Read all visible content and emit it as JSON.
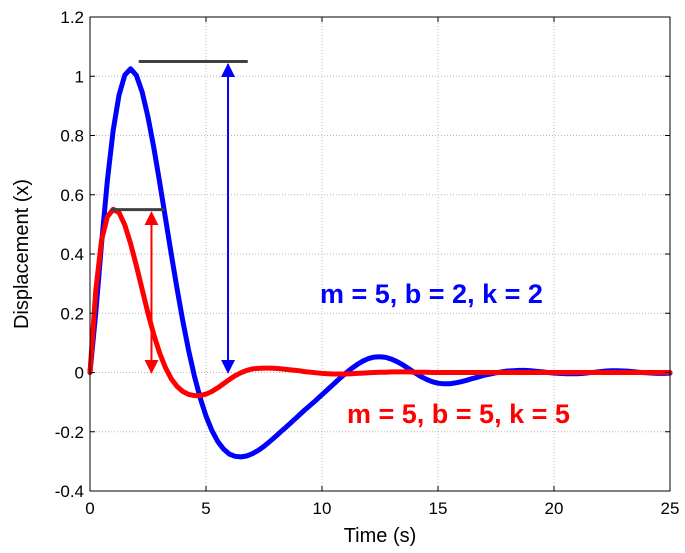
{
  "chart_data": {
    "type": "line",
    "xlabel": "Time (s)",
    "ylabel": "Displacement (x)",
    "xlim": [
      0,
      25
    ],
    "ylim": [
      -0.4,
      1.2
    ],
    "xticks": [
      0,
      5,
      10,
      15,
      20,
      25
    ],
    "yticks": [
      -0.4,
      -0.2,
      0,
      0.2,
      0.4,
      0.6,
      0.8,
      1,
      1.2
    ],
    "ytick_labels": [
      "-0.4",
      "-0.2",
      "0",
      "0.2",
      "0.4",
      "0.6",
      "0.8",
      "1",
      "1.2"
    ],
    "grid": true,
    "series": [
      {
        "name": "m = 5, b = 2, k = 2",
        "color": "#0000ff",
        "x": [
          0,
          0.25,
          0.5,
          0.75,
          1,
          1.25,
          1.5,
          1.75,
          2,
          2.25,
          2.5,
          2.75,
          3,
          3.25,
          3.5,
          3.75,
          4,
          4.25,
          4.5,
          4.75,
          5,
          5.25,
          5.5,
          5.75,
          6,
          6.25,
          6.5,
          6.75,
          7,
          7.25,
          7.5,
          7.75,
          8,
          8.25,
          8.5,
          8.75,
          9,
          9.25,
          9.5,
          9.75,
          10,
          10.25,
          10.5,
          10.75,
          11,
          11.25,
          11.5,
          11.75,
          12,
          12.25,
          12.5,
          12.75,
          13,
          13.25,
          13.5,
          13.75,
          14,
          14.25,
          14.5,
          14.75,
          15,
          15.25,
          15.5,
          15.75,
          16,
          16.25,
          16.5,
          16.75,
          17,
          17.25,
          17.5,
          17.75,
          18,
          18.25,
          18.5,
          18.75,
          19,
          19.25,
          19.5,
          19.75,
          20,
          20.25,
          20.5,
          20.75,
          21,
          21.25,
          21.5,
          21.75,
          22,
          22.25,
          22.5,
          22.75,
          23,
          23.25,
          23.5,
          23.75,
          24,
          24.25,
          24.5,
          24.75,
          25
        ],
        "y": [
          0,
          0.203,
          0.437,
          0.649,
          0.818,
          0.936,
          1.004,
          1.025,
          1.003,
          0.946,
          0.862,
          0.759,
          0.643,
          0.522,
          0.401,
          0.284,
          0.174,
          0.075,
          -0.012,
          -0.086,
          -0.147,
          -0.195,
          -0.232,
          -0.258,
          -0.275,
          -0.283,
          -0.285,
          -0.282,
          -0.274,
          -0.263,
          -0.249,
          -0.233,
          -0.216,
          -0.198,
          -0.181,
          -0.163,
          -0.145,
          -0.127,
          -0.11,
          -0.093,
          -0.075,
          -0.057,
          -0.039,
          -0.021,
          -0.004,
          0.012,
          0.026,
          0.038,
          0.047,
          0.052,
          0.053,
          0.051,
          0.045,
          0.036,
          0.025,
          0.012,
          -0.001,
          -0.013,
          -0.023,
          -0.031,
          -0.036,
          -0.038,
          -0.038,
          -0.035,
          -0.031,
          -0.026,
          -0.02,
          -0.015,
          -0.009,
          -0.005,
          -0.001,
          0.002,
          0.005,
          0.006,
          0.007,
          0.007,
          0.006,
          0.004,
          0.002,
          0,
          -0.002,
          -0.003,
          -0.004,
          -0.004,
          -0.004,
          -0.003,
          -0.001,
          0.001,
          0.003,
          0.005,
          0.006,
          0.006,
          0.005,
          0.004,
          0.002,
          0,
          -0.001,
          -0.002,
          -0.003,
          -0.003,
          -0.002
        ]
      },
      {
        "name": "m = 5, b = 5, k = 5",
        "color": "#ff0000",
        "x": [
          0,
          0.25,
          0.5,
          0.75,
          1,
          1.25,
          1.5,
          1.75,
          2,
          2.25,
          2.5,
          2.75,
          3,
          3.25,
          3.5,
          3.75,
          4,
          4.25,
          4.5,
          4.75,
          5,
          5.25,
          5.5,
          5.75,
          6,
          6.25,
          6.5,
          6.75,
          7,
          7.25,
          7.5,
          7.75,
          8,
          8.25,
          8.5,
          8.75,
          9,
          9.25,
          9.5,
          9.75,
          10,
          10.25,
          10.5,
          10.75,
          11,
          11.25,
          11.5,
          11.75,
          12,
          12.25,
          12.5,
          12.75,
          13,
          13.25,
          13.5,
          13.75,
          14,
          14.25,
          14.5,
          14.75,
          15,
          15.25,
          15.5,
          15.75,
          16,
          16.25,
          16.5,
          16.75,
          17,
          17.25,
          17.5,
          17.75,
          18,
          18.25,
          18.5,
          18.75,
          19,
          19.25,
          19.5,
          19.75,
          20,
          20.25,
          20.5,
          20.75,
          21,
          21.25,
          21.5,
          21.75,
          22,
          22.25,
          22.5,
          22.75,
          23,
          23.25,
          23.5,
          23.75,
          24,
          24.25,
          24.5,
          24.75,
          25
        ],
        "y": [
          0,
          0.278,
          0.448,
          0.526,
          0.551,
          0.54,
          0.498,
          0.435,
          0.36,
          0.28,
          0.2,
          0.128,
          0.066,
          0.017,
          -0.021,
          -0.047,
          -0.064,
          -0.074,
          -0.078,
          -0.078,
          -0.073,
          -0.064,
          -0.052,
          -0.038,
          -0.024,
          -0.011,
          -0.001,
          0.007,
          0.012,
          0.014,
          0.015,
          0.015,
          0.014,
          0.012,
          0.01,
          0.008,
          0.006,
          0.003,
          0.001,
          -0.001,
          -0.003,
          -0.004,
          -0.005,
          -0.005,
          -0.005,
          -0.004,
          -0.003,
          -0.002,
          -0.001,
          0,
          0.001,
          0.001,
          0.002,
          0.002,
          0.002,
          0.002,
          0.001,
          0.001,
          0.001,
          0,
          0,
          0,
          0,
          0,
          0,
          0,
          0,
          0,
          0,
          0,
          0,
          0,
          0,
          0,
          0,
          0,
          0,
          0,
          0,
          0,
          0,
          0,
          0,
          0,
          0,
          0,
          0,
          0,
          0,
          0,
          0,
          0,
          0,
          0,
          0,
          0,
          0,
          0,
          0,
          0,
          0
        ]
      }
    ],
    "annotations": [
      {
        "type": "hline",
        "color": "#404040",
        "x": [
          2.1,
          6.8
        ],
        "y": 1.05
      },
      {
        "type": "hline",
        "color": "#404040",
        "x": [
          0.9,
          3.2
        ],
        "y": 0.55
      },
      {
        "type": "double-arrow",
        "color": "#0000ff",
        "x": 5.95,
        "y": [
          1.04,
          0.0
        ]
      },
      {
        "type": "double-arrow",
        "color": "#ff0000",
        "x": 2.65,
        "y": [
          0.54,
          0.0
        ]
      }
    ]
  }
}
